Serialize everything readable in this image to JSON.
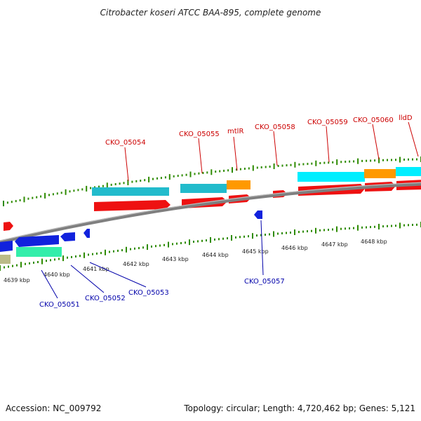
{
  "title": "Citrobacter koseri ATCC BAA-895, complete genome",
  "footer": {
    "accession": "Accession: NC_009792",
    "summary": "Topology: circular; Length: 4,720,462 bp; Genes: 5,121"
  },
  "colors": {
    "forward_label": "#cc0000",
    "reverse_label": "#0000aa",
    "tick": "#2e8b00",
    "backbone": "#7f7f7f",
    "cds": "#ee1111",
    "gene_teal": "#22bbcc",
    "gene_cyan": "#00eeff",
    "gene_orange": "#ff9900",
    "gene_blue": "#1122dd",
    "gene_green": "#33eeaa",
    "gene_khaki": "#bbbb88"
  },
  "scale_labels": [
    "4639 kbp",
    "4640 kbp",
    "4641 kbp",
    "4642 kbp",
    "4643 kbp",
    "4644 kbp",
    "4645 kbp",
    "4646 kbp",
    "4647 kbp",
    "4648 kbp"
  ],
  "top_labels": [
    "CKO_05054",
    "CKO_05055",
    "mtlR",
    "CKO_05058",
    "CKO_05059",
    "CKO_05060",
    "lldD"
  ],
  "bottom_labels": [
    "CKO_05051",
    "CKO_05052",
    "CKO_05053",
    "CKO_05057"
  ]
}
